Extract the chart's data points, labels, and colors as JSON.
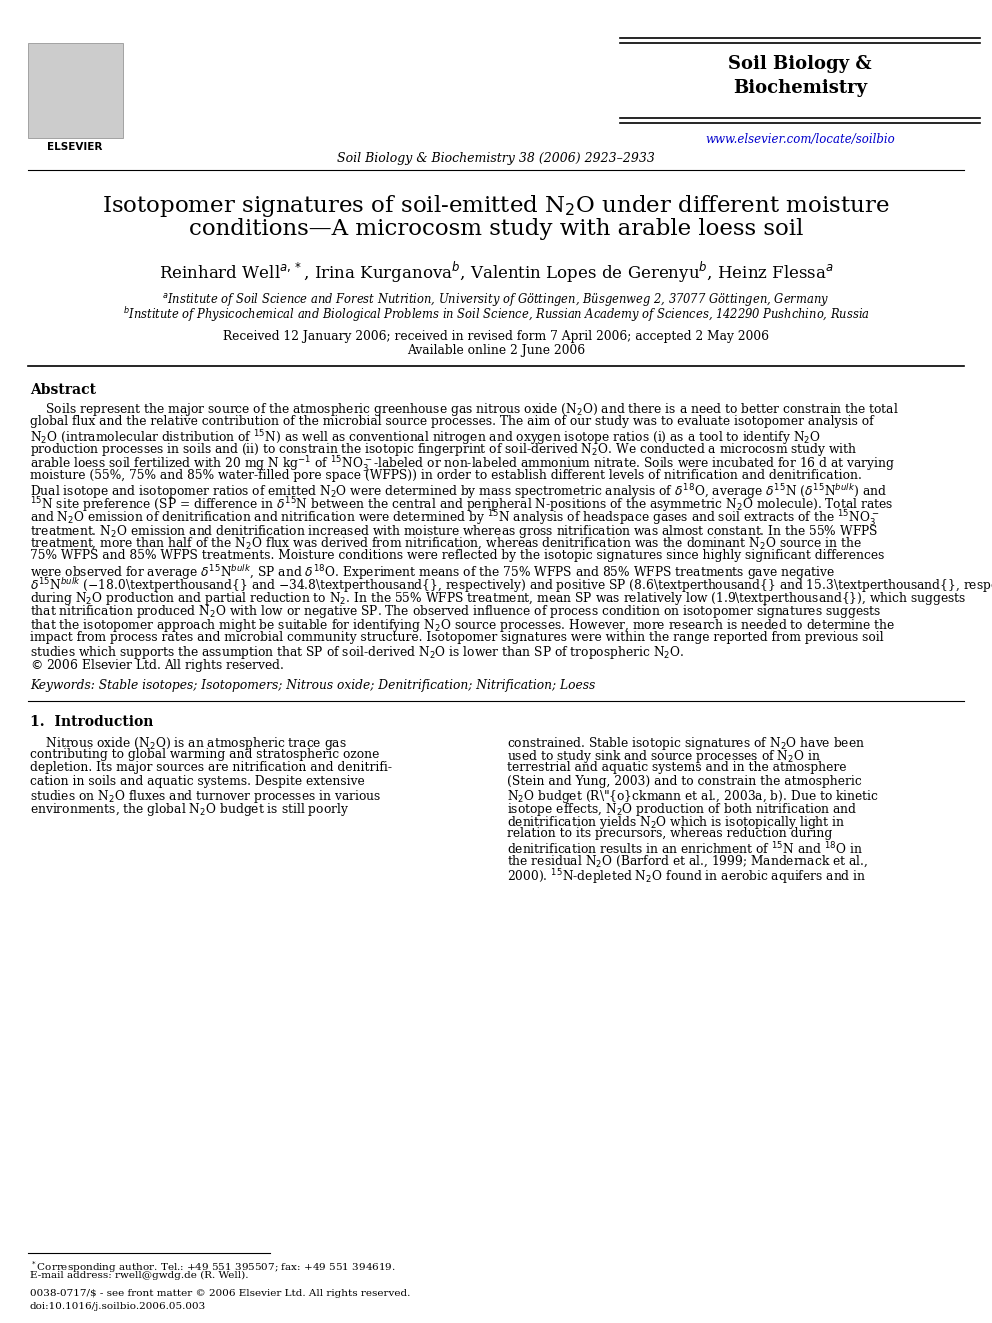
{
  "bg_color": "#ffffff",
  "journal_name": "Soil Biology &\nBiochemistry",
  "journal_ref": "Soil Biology & Biochemistry 38 (2006) 2923–2933",
  "journal_url": "www.elsevier.com/locate/soilbio",
  "title_line1": "Isotopomer signatures of soil-emitted N$_2$O under different moisture",
  "title_line2": "conditions—A microcosm study with arable loess soil",
  "authors": "Reinhard Well$^{a,*}$, Irina Kurganova$^b$, Valentin Lopes de Gerenyu$^b$, Heinz Flessa$^a$",
  "affil_a": "$^a$Institute of Soil Science and Forest Nutrition, University of Göttingen, Büsgenweg 2, 37077 Göttingen, Germany",
  "affil_b": "$^b$Institute of Physicochemical and Biological Problems in Soil Science, Russian Academy of Sciences, 142290 Pushchino, Russia",
  "received": "Received 12 January 2006; received in revised form 7 April 2006; accepted 2 May 2006",
  "available": "Available online 2 June 2006",
  "abstract_title": "Abstract",
  "keywords": "Keywords: Stable isotopes; Isotopomers; Nitrous oxide; Denitrification; Nitrification; Loess",
  "section1_title": "1.  Introduction",
  "footnote1": "$^*$Corresponding author. Tel.: +49 551 395507; fax: +49 551 394619.",
  "footnote2": "E-mail address: rwell@gwdg.de (R. Well).",
  "footer_left": "0038-0717/$ - see front matter © 2006 Elsevier Ltd. All rights reserved.",
  "footer_doi": "doi:10.1016/j.soilbio.2006.05.003"
}
